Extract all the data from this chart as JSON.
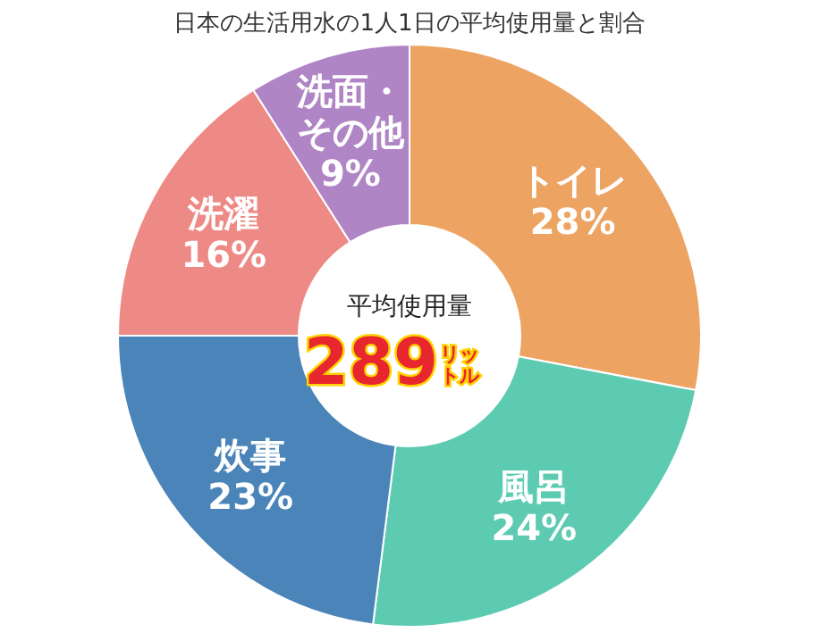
{
  "chart_data": {
    "type": "donut",
    "title": "日本の生活用水の1人1日の平均使用量と割合",
    "categories": [
      "トイレ",
      "風呂",
      "炊事",
      "洗濯",
      "洗面・その他"
    ],
    "values": [
      28,
      24,
      23,
      16,
      9
    ],
    "colors": [
      "#eda463",
      "#5ccbb1",
      "#4a84b8",
      "#ee8a85",
      "#b085c6"
    ],
    "value_labels": [
      "28%",
      "24%",
      "23%",
      "16%",
      "9%"
    ],
    "annotations": [
      "平均使用量",
      "289$^{リッ}$$_{トル}$"
    ]
  }
}
